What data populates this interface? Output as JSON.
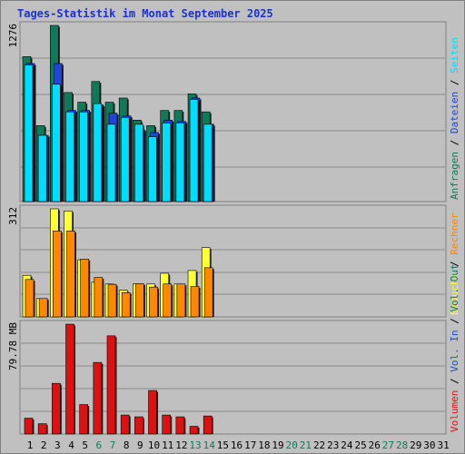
{
  "title": "Tages-Statistik im Monat September 2025",
  "colors": {
    "hits": "#0f7a5a",
    "files": "#2244dd",
    "pages": "#00ddff",
    "visits": "#ffff33",
    "sites": "#ff8800",
    "kbytes": "#dd1111",
    "vol_in": "#1f4fcc",
    "vol_out": "#0f7a5a",
    "day_weekend": "#0f7a5a",
    "day_normal": "#000000",
    "title": "#1a33cc",
    "panel_bg": "#c0c0c0"
  },
  "chart_data": [
    {
      "type": "bar",
      "panel": "top",
      "axis_label": "1276",
      "ylim": [
        0,
        1276
      ],
      "legend": [
        "Anfragen",
        "Dateien",
        "Seiten"
      ],
      "legend_colors": [
        "#0f7a5a",
        "#2244dd",
        "#00ddff"
      ],
      "series": [
        {
          "name": "Anfragen",
          "values": [
            1050,
            550,
            1276,
            790,
            720,
            870,
            720,
            750,
            590,
            550,
            660,
            660,
            780,
            650
          ]
        },
        {
          "name": "Dateien",
          "values": [
            1000,
            480,
            1000,
            660,
            660,
            700,
            640,
            620,
            520,
            500,
            590,
            580,
            750,
            560
          ]
        },
        {
          "name": "Seiten",
          "values": [
            990,
            480,
            850,
            650,
            650,
            710,
            560,
            610,
            560,
            470,
            570,
            570,
            740,
            560
          ]
        }
      ]
    },
    {
      "type": "bar",
      "panel": "middle",
      "axis_label": "312",
      "ylim": [
        0,
        312
      ],
      "legend": [
        "Besuche",
        "Rechner"
      ],
      "legend_colors": [
        "#ffff33",
        "#ff8800"
      ],
      "series": [
        {
          "name": "Besuche",
          "values": [
            120,
            53,
            312,
            306,
            165,
            100,
            95,
            77,
            96,
            95,
            126,
            95,
            134,
            200
          ]
        },
        {
          "name": "Rechner",
          "values": [
            108,
            53,
            248,
            248,
            167,
            114,
            94,
            70,
            96,
            86,
            95,
            95,
            88,
            142
          ]
        }
      ]
    },
    {
      "type": "bar",
      "panel": "bottom",
      "axis_label": "79.78 MB",
      "ylim": [
        0,
        79.78
      ],
      "legend": [
        "Volumen",
        "Vol. In",
        "Vol. Out"
      ],
      "legend_colors": [
        "#dd1111",
        "#1f4fcc",
        "#0f7a5a"
      ],
      "series": [
        {
          "name": "Volumen",
          "values": [
            11.5,
            7.5,
            36.8,
            79.78,
            21.4,
            52.0,
            71.3,
            13.8,
            12.5,
            31.6,
            13.8,
            12.5,
            5.6,
            13.1
          ]
        }
      ]
    }
  ],
  "days": [
    "1",
    "2",
    "3",
    "4",
    "5",
    "6",
    "7",
    "8",
    "9",
    "10",
    "11",
    "12",
    "13",
    "14",
    "15",
    "16",
    "17",
    "18",
    "19",
    "20",
    "21",
    "22",
    "23",
    "24",
    "25",
    "26",
    "27",
    "28",
    "29",
    "30",
    "31"
  ],
  "weekend_days": [
    6,
    7,
    13,
    14,
    20,
    21,
    27,
    28
  ],
  "separator": "/"
}
